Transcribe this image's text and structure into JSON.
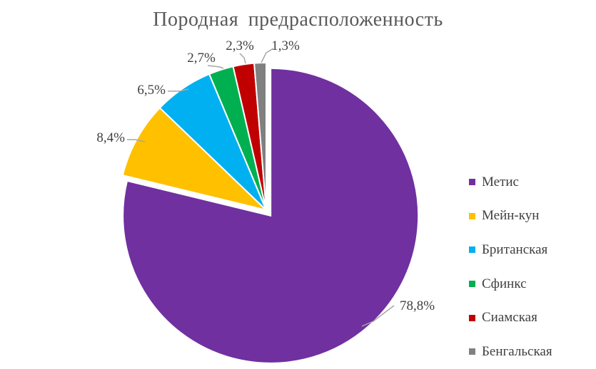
{
  "chart_data": {
    "type": "pie",
    "title": "Породная предрасположенность",
    "categories": [
      "Метис",
      "Мейн-кун",
      "Британская",
      "Сфинкс",
      "Сиамская",
      "Бенгальская"
    ],
    "values": [
      78.8,
      8.4,
      6.5,
      2.7,
      2.3,
      1.3
    ],
    "data_labels": [
      "78,8%",
      "8,4%",
      "6,5%",
      "2,7%",
      "2,3%",
      "1,3%"
    ],
    "colors": [
      "#7030A0",
      "#FFC000",
      "#00B0F0",
      "#00B050",
      "#C00000",
      "#808080"
    ],
    "exploded": [
      "Метис"
    ],
    "legend_position": "right"
  }
}
